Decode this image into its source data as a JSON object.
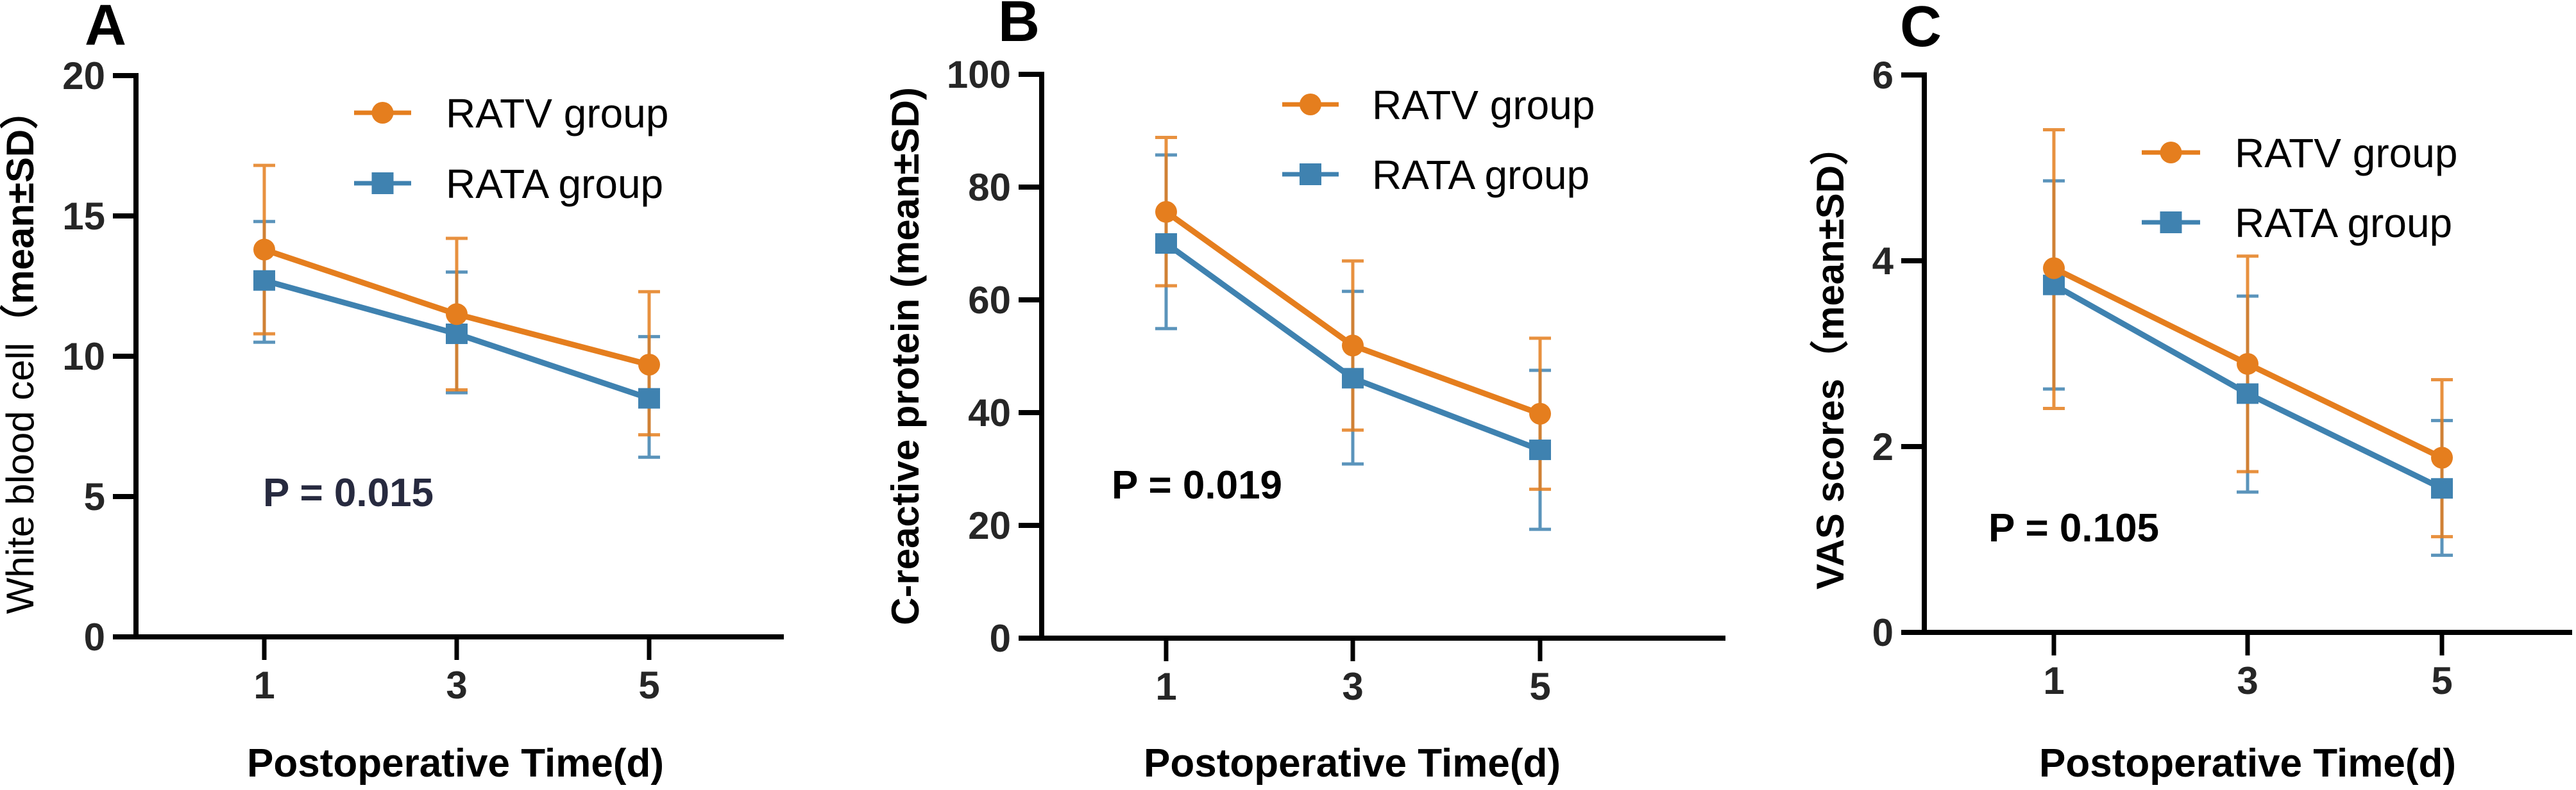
{
  "colors": {
    "RATV": "#e57e1e",
    "RATA": "#3f82b0",
    "axis": "#000000",
    "pvalue_A": "#272a3f",
    "pvalue_default": "#000000"
  },
  "chart_data": [
    {
      "panel": "A",
      "type": "line",
      "title": "",
      "xlabel": "Postoperative Time(d)",
      "ylabel_plain": "White blood cell",
      "ylabel_bold": "（mean±SD）",
      "x": [
        1,
        3,
        5
      ],
      "x_ticks": [
        "1",
        "3",
        "5"
      ],
      "ylim": [
        0,
        20
      ],
      "y_ticks": [
        0,
        5,
        10,
        15,
        20
      ],
      "grid": false,
      "legend_position": "top-right",
      "annotation": "P = 0.015",
      "series": [
        {
          "name": "RATV group",
          "marker": "circle",
          "values": [
            13.8,
            11.5,
            9.7
          ],
          "sd_upper": [
            16.8,
            14.2,
            12.3
          ],
          "sd_lower": [
            10.8,
            8.8,
            7.2
          ]
        },
        {
          "name": "RATA group",
          "marker": "square",
          "values": [
            12.7,
            10.8,
            8.5
          ],
          "sd_upper": [
            14.8,
            13.0,
            10.7
          ],
          "sd_lower": [
            10.5,
            8.7,
            6.4
          ]
        }
      ]
    },
    {
      "panel": "B",
      "type": "line",
      "title": "",
      "xlabel": "Postoperative Time(d)",
      "ylabel_plain": "",
      "ylabel_bold": "C-reactive protein (mean±SD)",
      "x": [
        1,
        3,
        5
      ],
      "x_ticks": [
        "1",
        "3",
        "5"
      ],
      "ylim": [
        0,
        100
      ],
      "y_ticks": [
        0,
        20,
        40,
        60,
        80,
        100
      ],
      "grid": false,
      "legend_position": "top-right",
      "annotation": "P = 0.019",
      "series": [
        {
          "name": "RATV group",
          "marker": "circle",
          "values": [
            75.6,
            51.9,
            39.8
          ],
          "sd_upper": [
            88.8,
            66.9,
            53.2
          ],
          "sd_lower": [
            62.5,
            36.9,
            26.4
          ]
        },
        {
          "name": "RATA group",
          "marker": "square",
          "values": [
            70.0,
            46.1,
            33.4
          ],
          "sd_upper": [
            85.7,
            61.5,
            47.5
          ],
          "sd_lower": [
            54.9,
            30.9,
            19.3
          ]
        }
      ]
    },
    {
      "panel": "C",
      "type": "line",
      "title": "",
      "xlabel": "Postoperative Time(d)",
      "ylabel_plain": "",
      "ylabel_bold": "VAS scores（mean±SD）",
      "x": [
        1,
        3,
        5
      ],
      "x_ticks": [
        "1",
        "3",
        "5"
      ],
      "ylim": [
        0,
        6
      ],
      "y_ticks": [
        0,
        2,
        4,
        6
      ],
      "grid": false,
      "legend_position": "top-right",
      "annotation": "P = 0.105",
      "series": [
        {
          "name": "RATV group",
          "marker": "circle",
          "values": [
            3.92,
            2.89,
            1.88
          ],
          "sd_upper": [
            5.41,
            4.05,
            2.72
          ],
          "sd_lower": [
            2.41,
            1.73,
            1.03
          ]
        },
        {
          "name": "RATA group",
          "marker": "square",
          "values": [
            3.74,
            2.57,
            1.55
          ],
          "sd_upper": [
            4.86,
            3.62,
            2.28
          ],
          "sd_lower": [
            2.62,
            1.51,
            0.83
          ]
        }
      ]
    }
  ]
}
